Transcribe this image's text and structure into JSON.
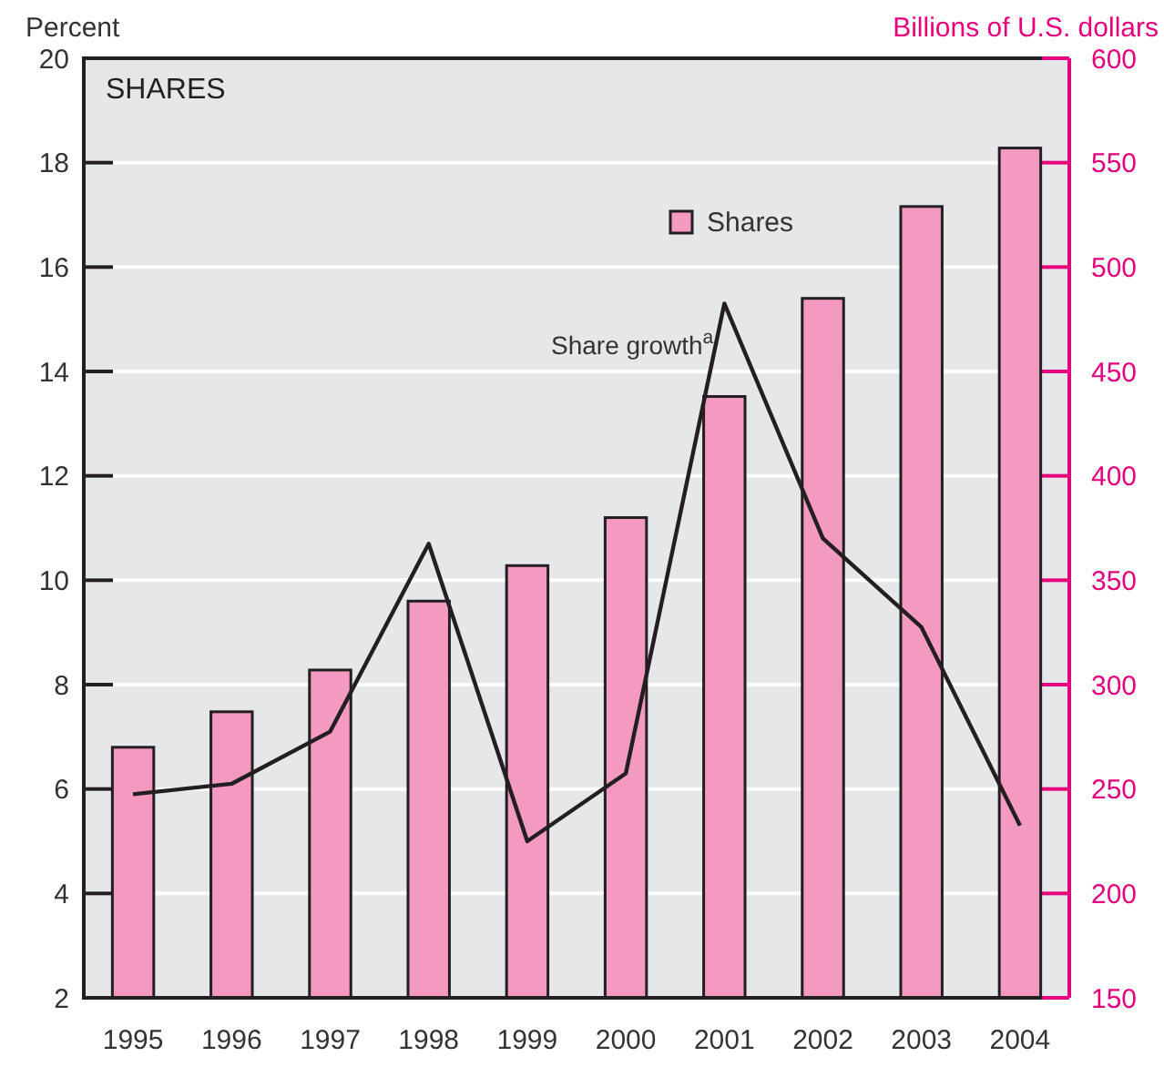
{
  "chart_data": {
    "type": "bar",
    "title": "SHARES",
    "ylabel": "Percent",
    "y2label": "Billions of U.S. dollars",
    "categories": [
      "1995",
      "1996",
      "1997",
      "1998",
      "1999",
      "2000",
      "2001",
      "2002",
      "2003",
      "2004"
    ],
    "series": [
      {
        "name": "Shares",
        "axis": "y2",
        "color": "#f49ac1",
        "values": [
          270,
          287,
          307,
          340,
          357,
          380,
          438,
          485,
          529,
          557
        ]
      },
      {
        "name": "Share growth$^{a}$",
        "type": "line",
        "axis": "y",
        "color": "#231f20",
        "values": [
          5.9,
          6.1,
          7.1,
          10.7,
          5.0,
          6.3,
          15.3,
          10.8,
          9.1,
          5.3
        ]
      }
    ],
    "ylim": [
      2,
      20
    ],
    "yticks": [
      2,
      4,
      6,
      8,
      10,
      12,
      14,
      16,
      18,
      20
    ],
    "y2lim": [
      150,
      600
    ],
    "y2ticks": [
      150,
      200,
      250,
      300,
      350,
      400,
      450,
      500,
      550,
      600
    ],
    "grid": "y",
    "legend": "top right",
    "marker": "none",
    "line_style": "solid"
  }
}
